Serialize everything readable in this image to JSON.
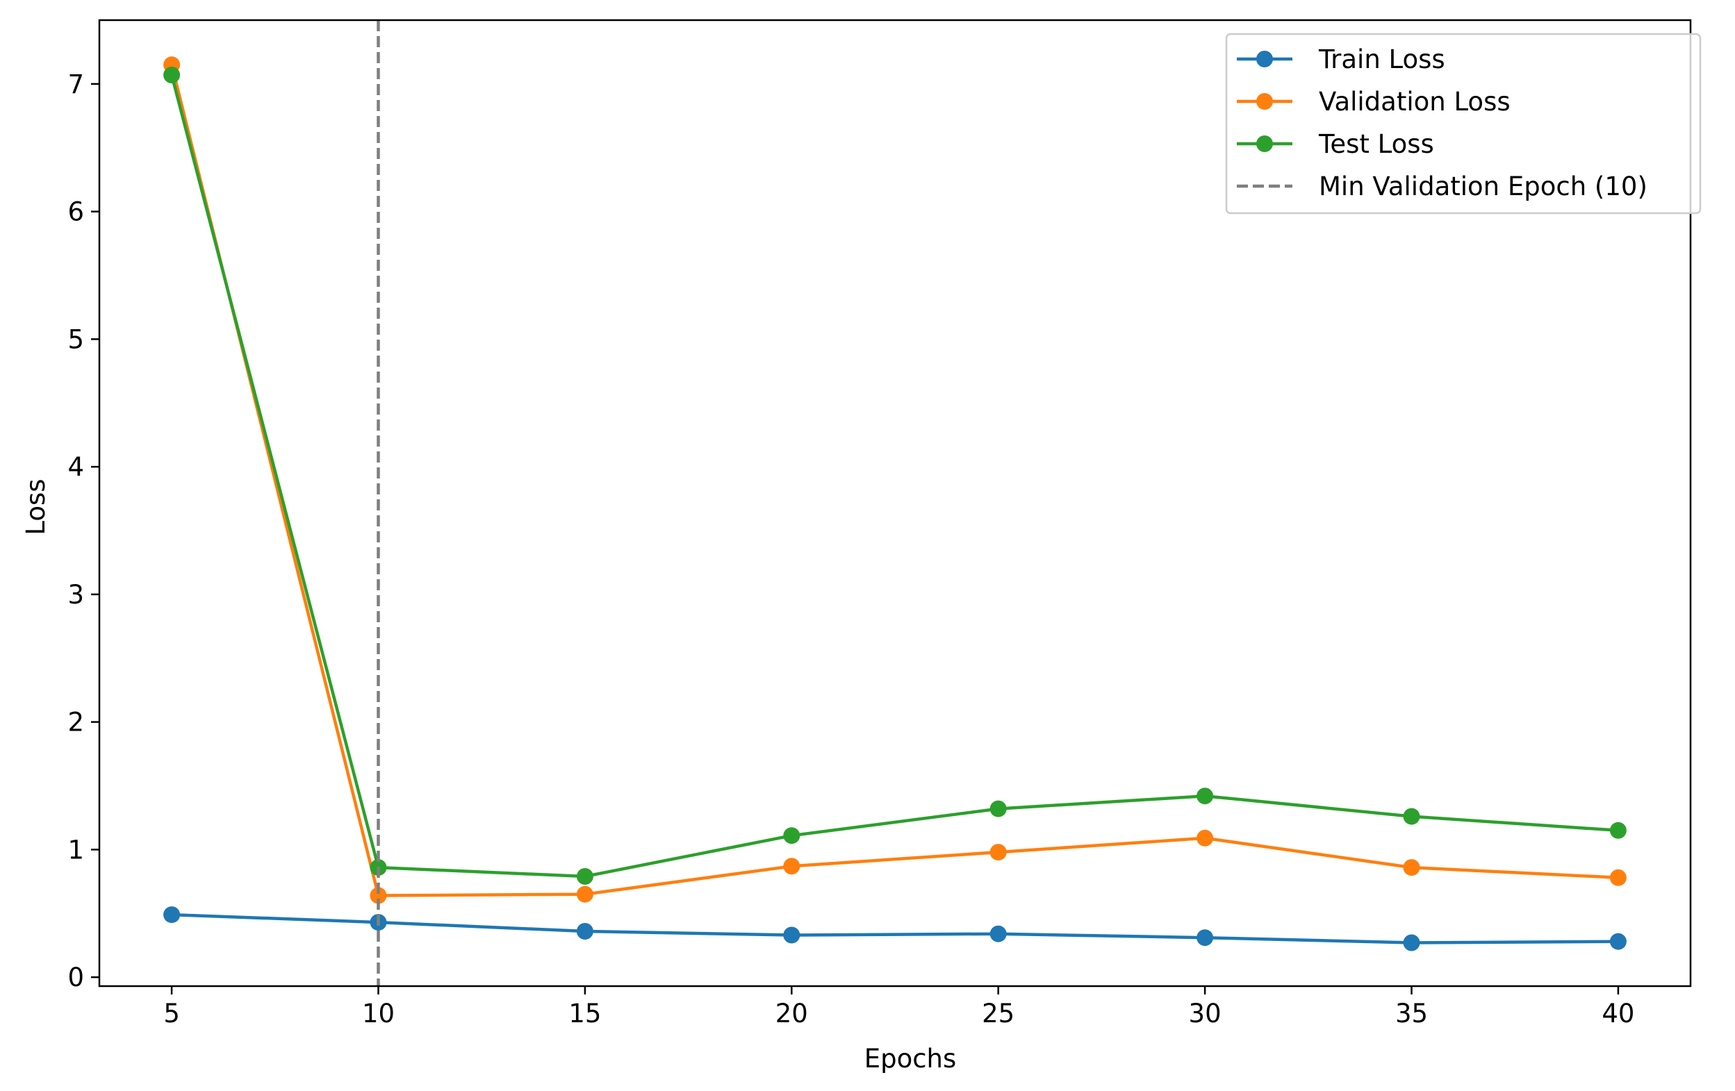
{
  "chart_data": {
    "type": "line",
    "title": "",
    "xlabel": "Epochs",
    "ylabel": "Loss",
    "x": [
      5,
      10,
      15,
      20,
      25,
      30,
      35,
      40
    ],
    "xticks": [
      5,
      10,
      15,
      20,
      25,
      30,
      35,
      40
    ],
    "yticks": [
      0,
      1,
      2,
      3,
      4,
      5,
      6,
      7
    ],
    "xlim": [
      3.25,
      41.75
    ],
    "ylim": [
      -0.07,
      7.5
    ],
    "grid": false,
    "legend_position": "top-right",
    "series": [
      {
        "name": "Train Loss",
        "color": "#1f77b4",
        "marker": "circle",
        "linestyle": "solid",
        "values": [
          0.49,
          0.43,
          0.36,
          0.33,
          0.34,
          0.31,
          0.27,
          0.28
        ]
      },
      {
        "name": "Validation Loss",
        "color": "#ff7f0e",
        "marker": "circle",
        "linestyle": "solid",
        "values": [
          7.15,
          0.64,
          0.65,
          0.87,
          0.98,
          1.09,
          0.86,
          0.78
        ]
      },
      {
        "name": "Test Loss",
        "color": "#2ca02c",
        "marker": "circle",
        "linestyle": "solid",
        "values": [
          7.07,
          0.86,
          0.79,
          1.11,
          1.32,
          1.42,
          1.26,
          1.15
        ]
      }
    ],
    "annotations": [
      {
        "type": "vline",
        "x": 10,
        "name": "Min Validation Epoch (10)",
        "color": "#7f7f7f",
        "linestyle": "dashed"
      }
    ]
  }
}
